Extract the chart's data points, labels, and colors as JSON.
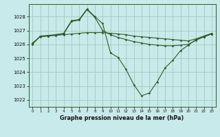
{
  "title": "Graphe pression niveau de la mer (hPa)",
  "background_color": "#c8eaea",
  "grid_color": "#a0ccbb",
  "line_color": "#2d5a27",
  "marker_color": "#2d5a27",
  "xlim": [
    -0.5,
    23.5
  ],
  "ylim": [
    1021.5,
    1028.9
  ],
  "yticks": [
    1022,
    1023,
    1024,
    1025,
    1026,
    1027,
    1028
  ],
  "xticks": [
    0,
    1,
    2,
    3,
    4,
    5,
    6,
    7,
    8,
    9,
    10,
    11,
    12,
    13,
    14,
    15,
    16,
    17,
    18,
    19,
    20,
    21,
    22,
    23
  ],
  "series": [
    {
      "x": [
        0,
        1,
        2,
        3,
        4,
        5,
        6,
        7,
        8,
        9,
        10,
        11,
        12,
        13,
        14,
        15,
        16,
        17,
        18,
        19,
        20,
        21,
        22,
        23
      ],
      "y": [
        1026.0,
        1026.6,
        1026.6,
        1026.7,
        1026.8,
        1027.7,
        1027.8,
        1028.55,
        1028.0,
        1027.5,
        1025.4,
        1025.05,
        1024.2,
        1023.1,
        1022.3,
        1022.5,
        1023.3,
        1024.3,
        1024.85,
        1025.55,
        1025.95,
        1026.35,
        1026.55,
        1026.75
      ]
    },
    {
      "x": [
        0,
        1,
        2,
        3,
        4,
        5,
        6,
        7,
        8,
        9,
        10,
        11,
        12,
        13,
        14,
        15,
        16,
        17,
        18,
        19,
        20,
        21,
        22,
        23
      ],
      "y": [
        1026.05,
        1026.6,
        1026.65,
        1026.7,
        1026.75,
        1027.65,
        1027.75,
        1028.5,
        1027.95,
        1027.0,
        1026.7,
        1026.5,
        1026.35,
        1026.2,
        1026.1,
        1026.0,
        1025.95,
        1025.9,
        1025.9,
        1025.95,
        1026.0,
        1026.3,
        1026.55,
        1026.75
      ]
    },
    {
      "x": [
        0,
        1,
        2,
        3,
        4,
        5,
        6,
        7,
        8,
        9,
        10,
        11,
        12,
        13,
        14,
        15,
        16,
        17,
        18,
        19,
        20,
        21,
        22,
        23
      ],
      "y": [
        1026.1,
        1026.55,
        1026.6,
        1026.65,
        1026.7,
        1026.75,
        1026.8,
        1026.85,
        1026.85,
        1026.85,
        1026.8,
        1026.75,
        1026.7,
        1026.6,
        1026.55,
        1026.5,
        1026.45,
        1026.4,
        1026.35,
        1026.3,
        1026.25,
        1026.4,
        1026.6,
        1026.8
      ]
    }
  ]
}
